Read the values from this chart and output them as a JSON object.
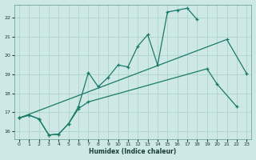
{
  "xlabel": "Humidex (Indice chaleur)",
  "bg_color": "#cde8e5",
  "grid_color": "#aacfcc",
  "line_color": "#1a7a6a",
  "xlim": [
    -0.5,
    23.5
  ],
  "ylim": [
    15.6,
    22.7
  ],
  "yticks": [
    16,
    17,
    18,
    19,
    20,
    21,
    22
  ],
  "xticks": [
    0,
    1,
    2,
    3,
    4,
    5,
    6,
    7,
    8,
    9,
    10,
    11,
    12,
    13,
    14,
    15,
    16,
    17,
    18,
    19,
    20,
    21,
    22,
    23
  ],
  "line1_x": [
    0,
    1,
    2,
    3,
    4,
    5,
    6,
    7,
    8,
    9,
    10,
    11,
    12,
    13,
    14,
    15,
    16,
    17,
    18
  ],
  "line1_y": [
    16.7,
    16.85,
    16.65,
    15.8,
    15.85,
    16.4,
    17.3,
    19.1,
    18.35,
    18.85,
    19.5,
    19.4,
    20.5,
    21.1,
    19.5,
    22.3,
    22.4,
    22.5,
    21.9
  ],
  "line2_x": [
    0,
    1,
    2,
    3,
    4,
    5,
    6,
    7,
    19,
    20,
    22
  ],
  "line2_y": [
    16.7,
    16.85,
    16.65,
    15.8,
    15.85,
    16.4,
    17.2,
    17.55,
    19.3,
    18.5,
    17.3
  ],
  "line3_x": [
    0,
    21,
    23
  ],
  "line3_y": [
    16.7,
    20.85,
    19.05
  ]
}
